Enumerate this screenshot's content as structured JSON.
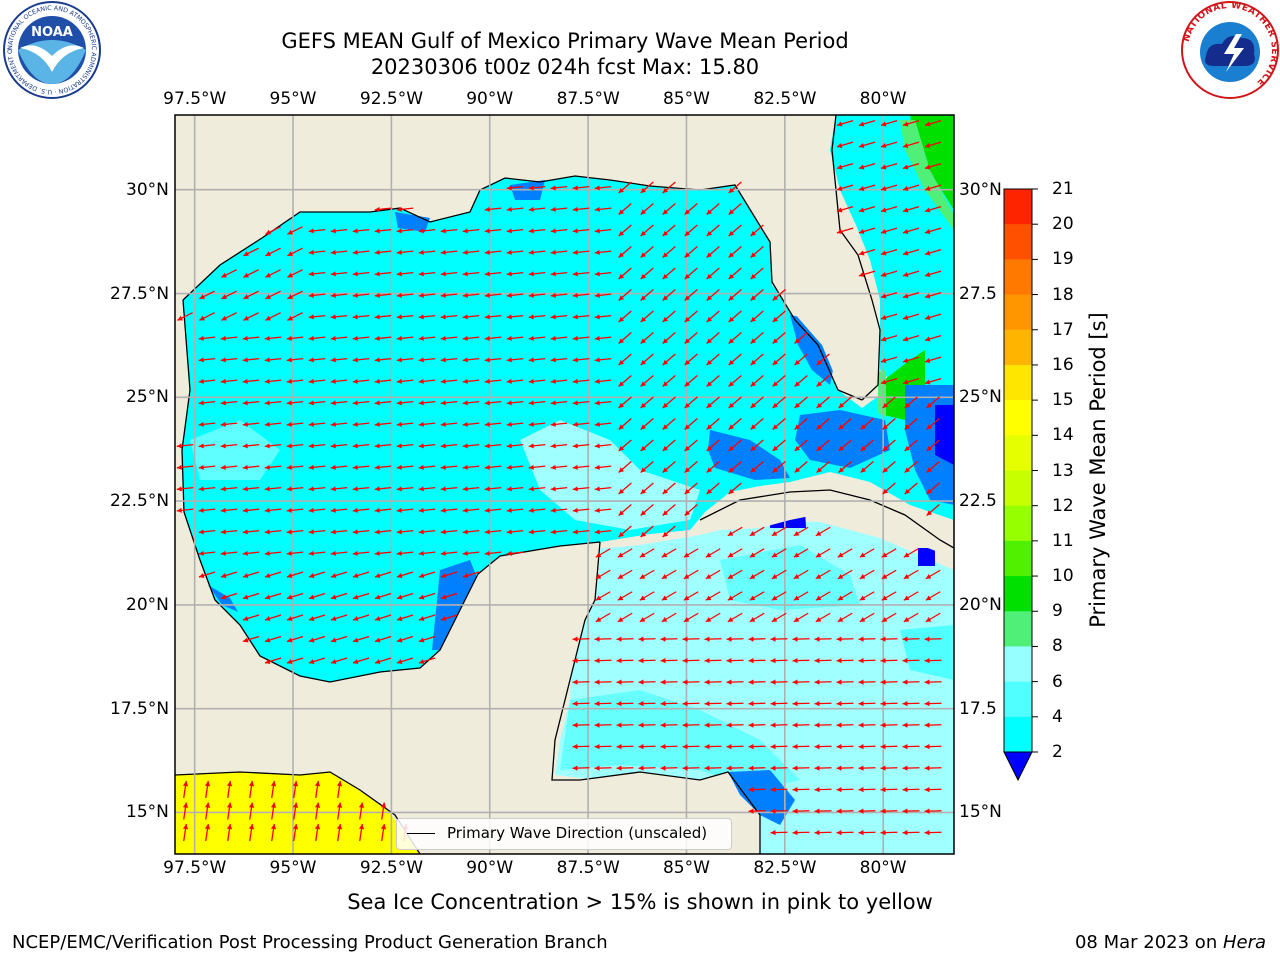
{
  "title": {
    "line1": "GEFS MEAN Gulf of Mexico Primary Wave Mean Period",
    "line2": "20230306 t00z 024h fcst   Max: 15.80"
  },
  "map": {
    "lon_labels": [
      "97.5°W",
      "95°W",
      "92.5°W",
      "90°W",
      "87.5°W",
      "85°W",
      "82.5°W",
      "80°W"
    ],
    "lat_labels_left": [
      "30°N",
      "27.5°N",
      "25°N",
      "22.5°N",
      "20°N",
      "17.5°N",
      "15°N"
    ],
    "lat_labels_right": [
      "30°N",
      "27.5",
      "25°N",
      "22.5",
      "20°N",
      "17.5",
      "15°N"
    ],
    "lon_range": [
      -98,
      -78.2
    ],
    "lat_range": [
      14.0,
      31.8
    ],
    "colors": {
      "land": "#efecdc",
      "arrow": "#ff0000",
      "grid": "#b0b0b0"
    }
  },
  "legend": {
    "label": "Primary Wave Direction (unscaled)"
  },
  "colorbar": {
    "label": "Primary Wave Mean Period [s]",
    "ticks": [
      "21",
      "20",
      "19",
      "18",
      "17",
      "16",
      "15",
      "14",
      "13",
      "12",
      "11",
      "10",
      "9",
      "8",
      "6",
      "4",
      "2"
    ],
    "colors": [
      "#ff0000",
      "#ff2400",
      "#ff5000",
      "#ff7800",
      "#ff9600",
      "#ffb400",
      "#ffe600",
      "#ffff00",
      "#e6ff00",
      "#c8ff00",
      "#96ff00",
      "#50f000",
      "#00e000",
      "#50f078",
      "#96ffff",
      "#50ffff",
      "#00ffff",
      "#0080ff"
    ],
    "extend_color": "#0000ff"
  },
  "footer": {
    "note": "Sea Ice Concentration > 15% is shown in pink to yellow",
    "credit": "NCEP/EMC/Verification Post Processing Product Generation Branch",
    "date": "08 Mar 2023 on ",
    "machine": "Hera"
  },
  "logos": {
    "noaa_text": "NOAA",
    "noaa_ring": "NATIONAL OCEANIC AND ATMOSPHERIC ADMINISTRATION · U.S. DEPARTMENT OF COMMERCE",
    "nws_ring": "NATIONAL WEATHER SERVICE"
  }
}
